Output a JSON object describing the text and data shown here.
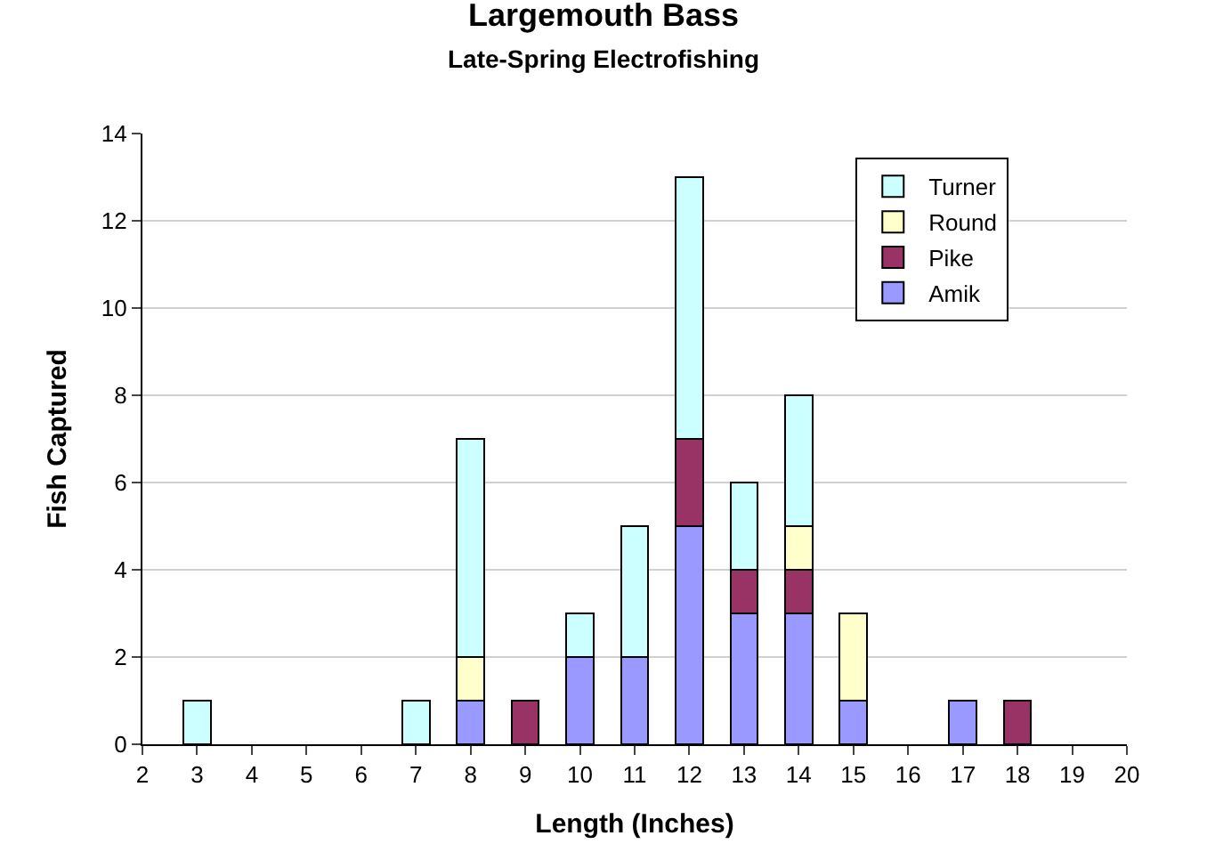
{
  "chart_data": {
    "type": "bar",
    "title": "Largemouth Bass",
    "subtitle": "Late-Spring Electrofishing",
    "xlabel": "Length (Inches)",
    "ylabel": "Fish Captured",
    "x": [
      3,
      7,
      8,
      9,
      10,
      11,
      12,
      13,
      14,
      15,
      17,
      18
    ],
    "stacked": true,
    "series": [
      {
        "name": "Amik",
        "color": "#9999ff",
        "values": [
          null,
          null,
          1,
          null,
          2,
          2,
          5,
          3,
          3,
          1,
          1,
          null
        ]
      },
      {
        "name": "Pike",
        "color": "#993366",
        "values": [
          null,
          null,
          null,
          1,
          null,
          null,
          2,
          1,
          1,
          null,
          null,
          1
        ]
      },
      {
        "name": "Round",
        "color": "#ffffcc",
        "values": [
          null,
          null,
          1,
          null,
          null,
          null,
          null,
          null,
          1,
          2,
          null,
          null
        ]
      },
      {
        "name": "Turner",
        "color": "#ccffff",
        "values": [
          1,
          1,
          5,
          null,
          1,
          3,
          6,
          2,
          3,
          null,
          null,
          null
        ]
      }
    ],
    "xlim": [
      2,
      20
    ],
    "xticks": [
      2,
      3,
      4,
      5,
      6,
      7,
      8,
      9,
      10,
      11,
      12,
      13,
      14,
      15,
      16,
      17,
      18,
      19,
      20
    ],
    "ylim": [
      0,
      14
    ],
    "yticks": [
      0,
      2,
      4,
      6,
      8,
      10,
      12,
      14
    ],
    "grid": "y",
    "legend": "top right"
  }
}
